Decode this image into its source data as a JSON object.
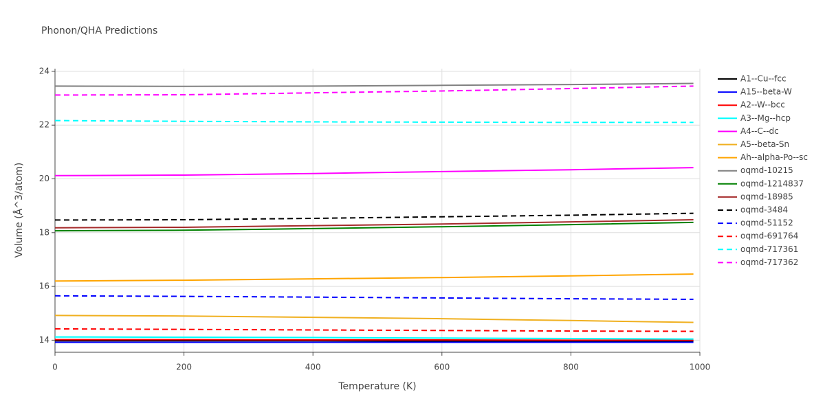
{
  "chart_data": {
    "type": "line",
    "title": "Phonon/QHA Predictions",
    "x_label": "Temperature (K)",
    "y_label": "Volume (Å^3/atom)",
    "x": [
      0,
      200,
      400,
      600,
      800,
      990
    ],
    "xlim": [
      0,
      1000
    ],
    "xticks": [
      0,
      200,
      400,
      600,
      800,
      1000
    ],
    "ylim": [
      13.55,
      24.1
    ],
    "yticks": [
      14,
      16,
      18,
      20,
      22,
      24
    ],
    "grid": true,
    "legend": "right",
    "series": [
      {
        "name": "A1--Cu--fcc",
        "color": "#000000",
        "dash": false,
        "values": [
          13.98,
          13.98,
          13.98,
          13.97,
          13.97,
          13.97
        ]
      },
      {
        "name": "A15--beta-W",
        "color": "#0000ff",
        "dash": false,
        "values": [
          13.92,
          13.92,
          13.92,
          13.92,
          13.92,
          13.92
        ]
      },
      {
        "name": "A2--W--bcc",
        "color": "#ff0000",
        "dash": false,
        "values": [
          14.02,
          14.02,
          14.01,
          14.01,
          14.0,
          14.0
        ]
      },
      {
        "name": "A3--Mg--hcp",
        "color": "#00ffff",
        "dash": false,
        "values": [
          14.12,
          14.11,
          14.1,
          14.08,
          14.06,
          14.04
        ]
      },
      {
        "name": "A4--C--dc",
        "color": "#ff00ff",
        "dash": false,
        "values": [
          20.12,
          20.14,
          20.2,
          20.27,
          20.34,
          20.42
        ]
      },
      {
        "name": "A5--beta-Sn",
        "color": "#f0b020",
        "dash": false,
        "values": [
          14.92,
          14.9,
          14.85,
          14.8,
          14.73,
          14.66
        ]
      },
      {
        "name": "Ah--alpha-Po--sc",
        "color": "#ffa500",
        "dash": false,
        "values": [
          16.2,
          16.23,
          16.28,
          16.33,
          16.39,
          16.46
        ]
      },
      {
        "name": "oqmd-10215",
        "color": "#808080",
        "dash": false,
        "values": [
          23.45,
          23.44,
          23.45,
          23.48,
          23.51,
          23.55
        ]
      },
      {
        "name": "oqmd-1214837",
        "color": "#008000",
        "dash": false,
        "values": [
          18.07,
          18.09,
          18.15,
          18.22,
          18.3,
          18.38
        ]
      },
      {
        "name": "oqmd-18985",
        "color": "#a52a2a",
        "dash": false,
        "values": [
          18.18,
          18.2,
          18.26,
          18.32,
          18.4,
          18.48
        ]
      },
      {
        "name": "oqmd-3484",
        "color": "#000000",
        "dash": true,
        "values": [
          18.47,
          18.48,
          18.53,
          18.59,
          18.65,
          18.72
        ]
      },
      {
        "name": "oqmd-51152",
        "color": "#0000ff",
        "dash": true,
        "values": [
          15.65,
          15.63,
          15.6,
          15.57,
          15.54,
          15.52
        ]
      },
      {
        "name": "oqmd-691764",
        "color": "#ff0000",
        "dash": true,
        "values": [
          14.42,
          14.4,
          14.38,
          14.36,
          14.34,
          14.33
        ]
      },
      {
        "name": "oqmd-717361",
        "color": "#00ffff",
        "dash": true,
        "values": [
          22.17,
          22.14,
          22.12,
          22.11,
          22.1,
          22.1
        ]
      },
      {
        "name": "oqmd-717362",
        "color": "#ff00ff",
        "dash": true,
        "values": [
          23.12,
          23.13,
          23.2,
          23.27,
          23.36,
          23.45
        ]
      }
    ]
  }
}
